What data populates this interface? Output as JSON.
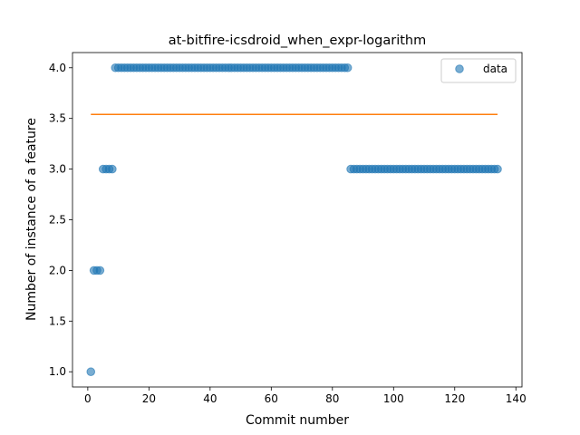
{
  "chart_data": {
    "type": "scatter",
    "title": "at-bitfire-icsdroid_when_expr-logarithm",
    "xlabel": "Commit number",
    "ylabel": "Number of instance of a feature",
    "xlim": [
      -5,
      142
    ],
    "ylim": [
      0.85,
      4.15
    ],
    "xticks": [
      0,
      20,
      40,
      60,
      80,
      100,
      120,
      140
    ],
    "yticks": [
      1.0,
      1.5,
      2.0,
      2.5,
      3.0,
      3.5,
      4.0
    ],
    "xtick_labels": [
      "0",
      "20",
      "40",
      "60",
      "80",
      "100",
      "120",
      "140"
    ],
    "ytick_labels": [
      "1.0",
      "1.5",
      "2.0",
      "2.5",
      "3.0",
      "3.5",
      "4.0"
    ],
    "series": [
      {
        "name": "data",
        "kind": "scatter",
        "color": "#1f77b4",
        "segments": [
          {
            "x_start": 1,
            "x_end": 1,
            "y": 1
          },
          {
            "x_start": 2,
            "x_end": 4,
            "y": 2
          },
          {
            "x_start": 5,
            "x_end": 8,
            "y": 3
          },
          {
            "x_start": 9,
            "x_end": 85,
            "y": 4
          },
          {
            "x_start": 86,
            "x_end": 134,
            "y": 3
          }
        ]
      },
      {
        "kind": "line",
        "color": "#ff7f0e",
        "x": [
          1,
          134
        ],
        "y": [
          3.54,
          3.54
        ]
      }
    ],
    "legend": {
      "location": "upper right",
      "entries": [
        "data"
      ]
    }
  }
}
